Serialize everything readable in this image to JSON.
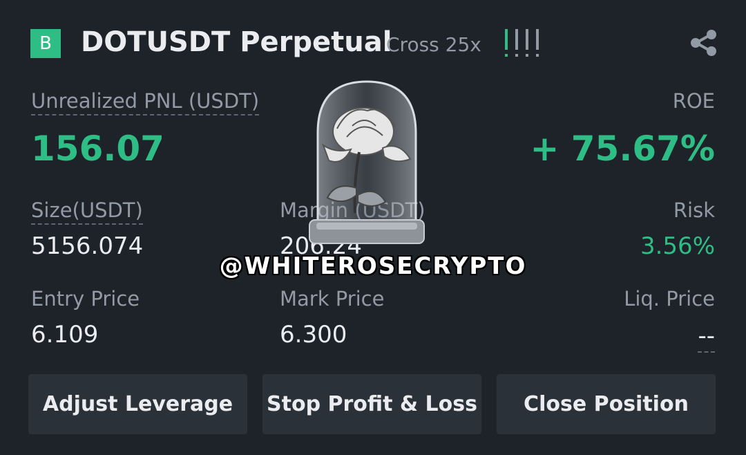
{
  "header": {
    "badge": "B",
    "symbol": "DOTUSDT Perpetual",
    "margin_mode": "Cross 25x",
    "risk_level": 1,
    "risk_level_max": 4,
    "share_icon": "share-icon"
  },
  "pnl": {
    "label": "Unrealized PNL (USDT)",
    "value": "156.07",
    "roe_label": "ROE",
    "roe_value": "+ 75.67%"
  },
  "stats_row1": {
    "size_label": "Size(USDT)",
    "size_value": "5156.074",
    "margin_label": "Margin (USDT)",
    "margin_value": "206.24",
    "risk_label": "Risk",
    "risk_value": "3.56%"
  },
  "stats_row2": {
    "entry_label": "Entry Price",
    "entry_value": "6.109",
    "mark_label": "Mark Price",
    "mark_value": "6.300",
    "liq_label": "Liq. Price",
    "liq_value": "--"
  },
  "actions": {
    "adjust_leverage": "Adjust Leverage",
    "stop_profit_loss": "Stop Profit & Loss",
    "close_position": "Close Position"
  },
  "watermark": {
    "text": "@WHITEROSECRYPTO"
  },
  "colors": {
    "background": "#1e2329",
    "positive": "#2ebd85",
    "muted": "#929aa5",
    "button_bg": "#2b3139"
  }
}
